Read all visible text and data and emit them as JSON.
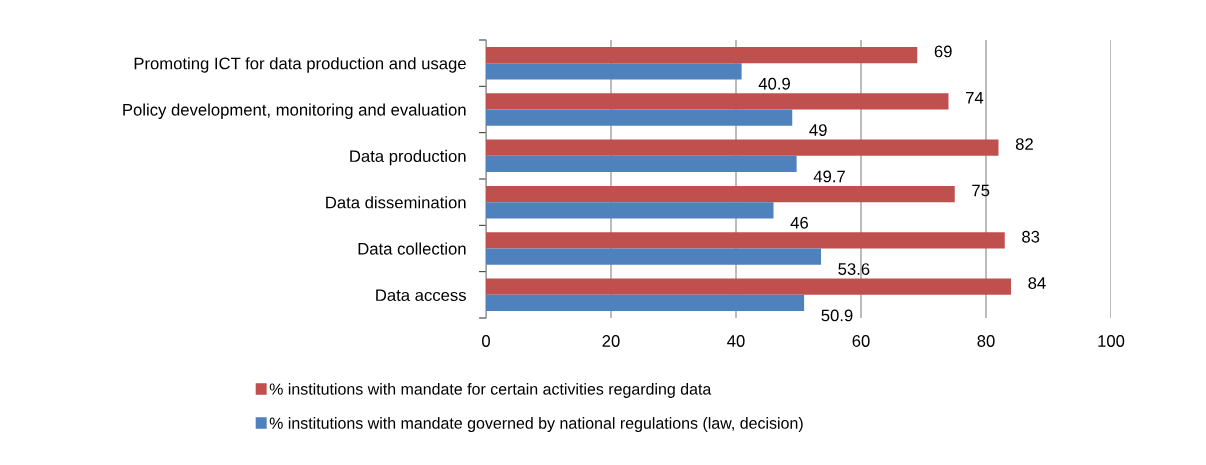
{
  "chart_data": {
    "type": "bar",
    "orientation": "horizontal",
    "categories": [
      "Promoting ICT for data production and usage",
      "Policy development, monitoring and evaluation",
      "Data production",
      "Data dissemination",
      "Data collection",
      "Data access"
    ],
    "series": [
      {
        "name": "% institutions with mandate for certain activities regarding data",
        "color": "#c0504d",
        "values": [
          69,
          74,
          82,
          75,
          83,
          84
        ]
      },
      {
        "name": "% institutions with mandate governed by national regulations (law, decision)",
        "color": "#4f81bd",
        "values": [
          40.9,
          49,
          49.7,
          46,
          53.6,
          50.9
        ]
      }
    ],
    "xlim": [
      0,
      100
    ],
    "xticks": [
      0,
      20,
      40,
      60,
      80,
      100
    ],
    "grid": "x",
    "legend": "bottom",
    "data_labels": true
  }
}
